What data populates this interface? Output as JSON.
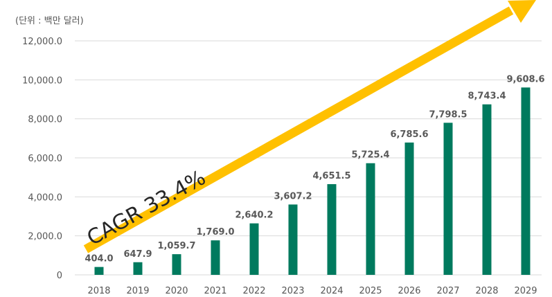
{
  "chart_data": {
    "type": "bar",
    "unit_label": "(단위 : 백만 달러)",
    "categories": [
      "2018",
      "2019",
      "2020",
      "2021",
      "2022",
      "2023",
      "2024",
      "2025",
      "2026",
      "2027",
      "2028",
      "2029"
    ],
    "values": [
      404.0,
      647.9,
      1059.7,
      1769.0,
      2640.2,
      3607.2,
      4651.5,
      5725.4,
      6785.6,
      7798.5,
      8743.4,
      9608.6
    ],
    "data_labels": [
      "404.0",
      "647.9",
      "1,059.7",
      "1,769.0",
      "2,640.2",
      "3,607.2",
      "4,651.5",
      "5,725.4",
      "6,785.6",
      "7,798.5",
      "8,743.4",
      "9,608.6"
    ],
    "y_ticks": [
      0,
      2000,
      4000,
      6000,
      8000,
      10000,
      12000
    ],
    "y_tick_labels": [
      "0",
      "2,000.0",
      "4,000.0",
      "6,000.0",
      "8,000.0",
      "10,000.0",
      "12,000.0"
    ],
    "ylim": [
      0,
      12000
    ],
    "grid": true,
    "annotation": "CAGR 33.4%",
    "colors": {
      "bar": "#007a5e",
      "arrow": "#ffc000",
      "grid": "#d9d9d9"
    }
  }
}
